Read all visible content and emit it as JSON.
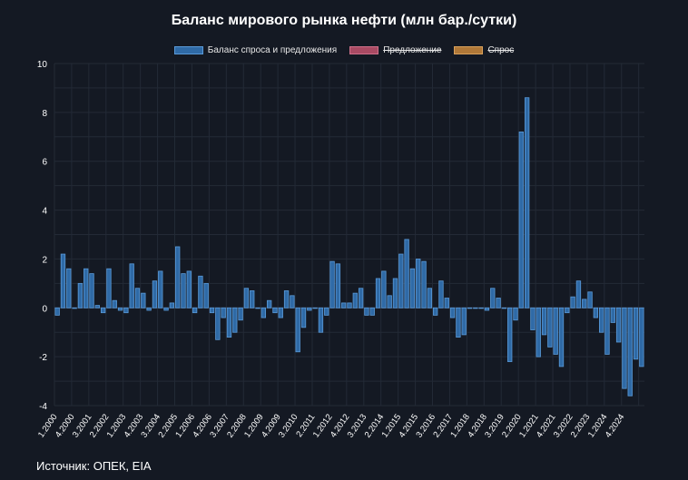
{
  "chart_data": {
    "type": "bar",
    "title": "Баланс мирового рынка нефти (млн бар./сутки)",
    "ylim": [
      -4,
      10
    ],
    "y_ticks": [
      -4,
      -2,
      0,
      2,
      4,
      6,
      8,
      10
    ],
    "grid": true,
    "legend_position": "top-center",
    "legend": [
      {
        "name": "Баланс спроса и предложения",
        "color": "#3f7fbf",
        "hidden": false
      },
      {
        "name": "Предложение",
        "color": "#c0506a",
        "hidden": true
      },
      {
        "name": "Спрос",
        "color": "#c98a3f",
        "hidden": true
      }
    ],
    "x_tick_labels": [
      "1.2000",
      "4.2000",
      "3.2001",
      "2.2002",
      "1.2003",
      "4.2003",
      "3.2004",
      "2.2005",
      "1.2006",
      "4.2006",
      "3.2007",
      "2.2008",
      "1.2009",
      "4.2009",
      "3.2010",
      "2.2011",
      "1.2012",
      "4.2012",
      "3.2013",
      "2.2014",
      "1.2015",
      "4.2015",
      "3.2016",
      "2.2017",
      "1.2018",
      "4.2018",
      "3.2019",
      "2.2020",
      "1.2021",
      "4.2021",
      "3.2022",
      "2.2023",
      "1.2024",
      "4.2024"
    ],
    "series": [
      {
        "name": "Баланс спроса и предложения",
        "values": [
          -0.3,
          2.2,
          1.6,
          0.0,
          1.0,
          1.6,
          1.4,
          0.1,
          -0.2,
          1.6,
          0.3,
          -0.1,
          -0.2,
          1.8,
          0.8,
          0.6,
          -0.1,
          1.1,
          1.5,
          -0.1,
          0.2,
          2.5,
          1.4,
          1.5,
          -0.2,
          1.3,
          1.0,
          -0.2,
          -1.3,
          -0.4,
          -1.2,
          -1.0,
          -0.5,
          0.8,
          0.7,
          0.0,
          -0.4,
          0.3,
          -0.2,
          -0.4,
          0.7,
          0.5,
          -1.8,
          -0.8,
          -0.1,
          0.0,
          -1.0,
          -0.3,
          1.9,
          1.8,
          0.2,
          0.2,
          0.6,
          0.8,
          -0.3,
          -0.3,
          1.2,
          1.5,
          0.5,
          1.2,
          2.2,
          2.8,
          1.6,
          2.0,
          1.9,
          0.8,
          -0.3,
          1.1,
          0.4,
          -0.4,
          -1.2,
          -1.1,
          0.0,
          0.0,
          0.0,
          -0.1,
          0.8,
          0.4,
          0.0,
          -2.2,
          -0.5,
          7.2,
          8.6,
          -0.9,
          -2.0,
          -1.1,
          -1.6,
          -1.9,
          -2.4,
          -0.2,
          0.45,
          1.1,
          0.35,
          0.65,
          -0.4,
          -1.0,
          -1.9,
          -0.6,
          -1.4,
          -3.3,
          -3.6,
          -2.1,
          -2.4
        ]
      }
    ]
  },
  "source": "Источник: ОПЕК, EIA"
}
